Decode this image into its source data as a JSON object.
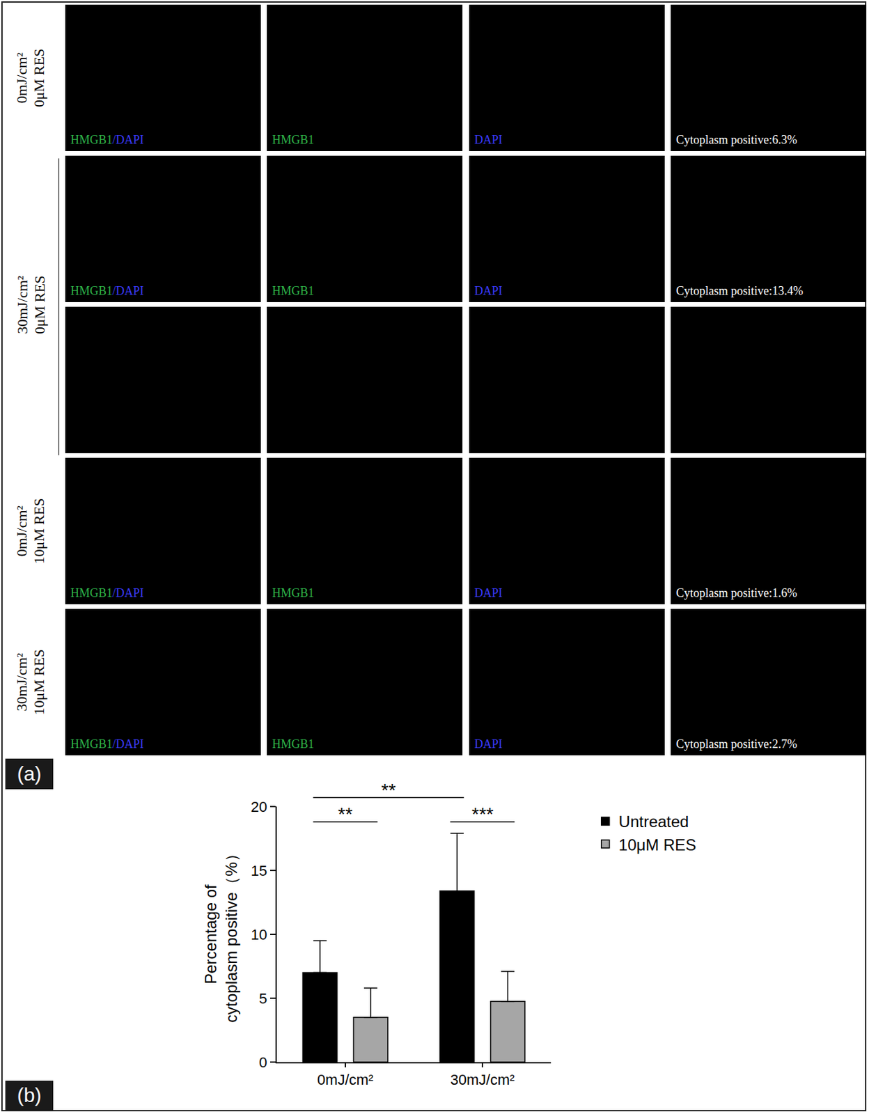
{
  "panel_a": {
    "label": "(a)",
    "rows": [
      {
        "label": [
          "0mJ/cm²",
          "0μM RES"
        ],
        "tiles": [
          [
            {
              "text": "HMGB1",
              "color": "#2fb54a"
            },
            {
              "text": "/DAPI",
              "color": "#3a3aff"
            }
          ],
          [
            {
              "text": "HMGB1",
              "color": "#2fb54a"
            }
          ],
          [
            {
              "text": "DAPI",
              "color": "#3a3aff"
            }
          ],
          [
            {
              "text": "Cytoplasm positive:6.3%",
              "color": "#ffffff"
            }
          ]
        ]
      },
      {
        "label": [
          "30mJ/cm²",
          "0μM RES"
        ],
        "zoomed": true,
        "tiles": [
          [
            {
              "text": "HMGB1",
              "color": "#2fb54a"
            },
            {
              "text": "/DAPI",
              "color": "#3a3aff"
            }
          ],
          [
            {
              "text": "HMGB1",
              "color": "#2fb54a"
            }
          ],
          [
            {
              "text": "DAPI",
              "color": "#3a3aff"
            }
          ],
          [
            {
              "text": "Cytoplasm positive:13.4%",
              "color": "#ffffff"
            }
          ]
        ]
      },
      {
        "label": [
          "0mJ/cm²",
          "10μM RES"
        ],
        "tiles": [
          [
            {
              "text": "HMGB1",
              "color": "#2fb54a"
            },
            {
              "text": "/DAPI",
              "color": "#3a3aff"
            }
          ],
          [
            {
              "text": "HMGB1",
              "color": "#2fb54a"
            }
          ],
          [
            {
              "text": "DAPI",
              "color": "#3a3aff"
            }
          ],
          [
            {
              "text": "Cytoplasm positive:1.6%",
              "color": "#ffffff"
            }
          ]
        ]
      },
      {
        "label": [
          "30mJ/cm²",
          "10μM RES"
        ],
        "tiles": [
          [
            {
              "text": "HMGB1",
              "color": "#2fb54a"
            },
            {
              "text": "/DAPI",
              "color": "#3a3aff"
            }
          ],
          [
            {
              "text": "HMGB1",
              "color": "#2fb54a"
            }
          ],
          [
            {
              "text": "DAPI",
              "color": "#3a3aff"
            }
          ],
          [
            {
              "text": "Cytoplasm positive:2.7%",
              "color": "#ffffff"
            }
          ]
        ]
      }
    ]
  },
  "chart_data": {
    "type": "bar",
    "label": "(b)",
    "categories": [
      "0mJ/cm²",
      "30mJ/cm²"
    ],
    "series": [
      {
        "name": "Untreated",
        "color": "#000000",
        "values": [
          7.0,
          13.4
        ],
        "errors": [
          2.5,
          4.5
        ]
      },
      {
        "name": "10μM RES",
        "color": "#a6a6a6",
        "values": [
          3.5,
          4.75
        ],
        "errors": [
          2.3,
          2.35
        ]
      }
    ],
    "ylabel": [
      "Percentage of",
      "cytoplasm positive（%）"
    ],
    "ylim": [
      0,
      20
    ],
    "yticks": [
      0,
      5,
      10,
      15,
      20
    ],
    "legend": "right",
    "grid": false,
    "annotations": [
      {
        "text": "**",
        "y": 18.8,
        "between": [
          [
            "0mJ/cm²",
            "Untreated"
          ],
          [
            "0mJ/cm²",
            "10μM RES"
          ]
        ]
      },
      {
        "text": "**",
        "y": 20.7,
        "between": [
          [
            "0mJ/cm²",
            "Untreated"
          ],
          [
            "30mJ/cm²",
            "Untreated"
          ]
        ]
      },
      {
        "text": "***",
        "y": 18.8,
        "between": [
          [
            "30mJ/cm²",
            "Untreated"
          ],
          [
            "30mJ/cm²",
            "10μM RES"
          ]
        ]
      }
    ]
  }
}
